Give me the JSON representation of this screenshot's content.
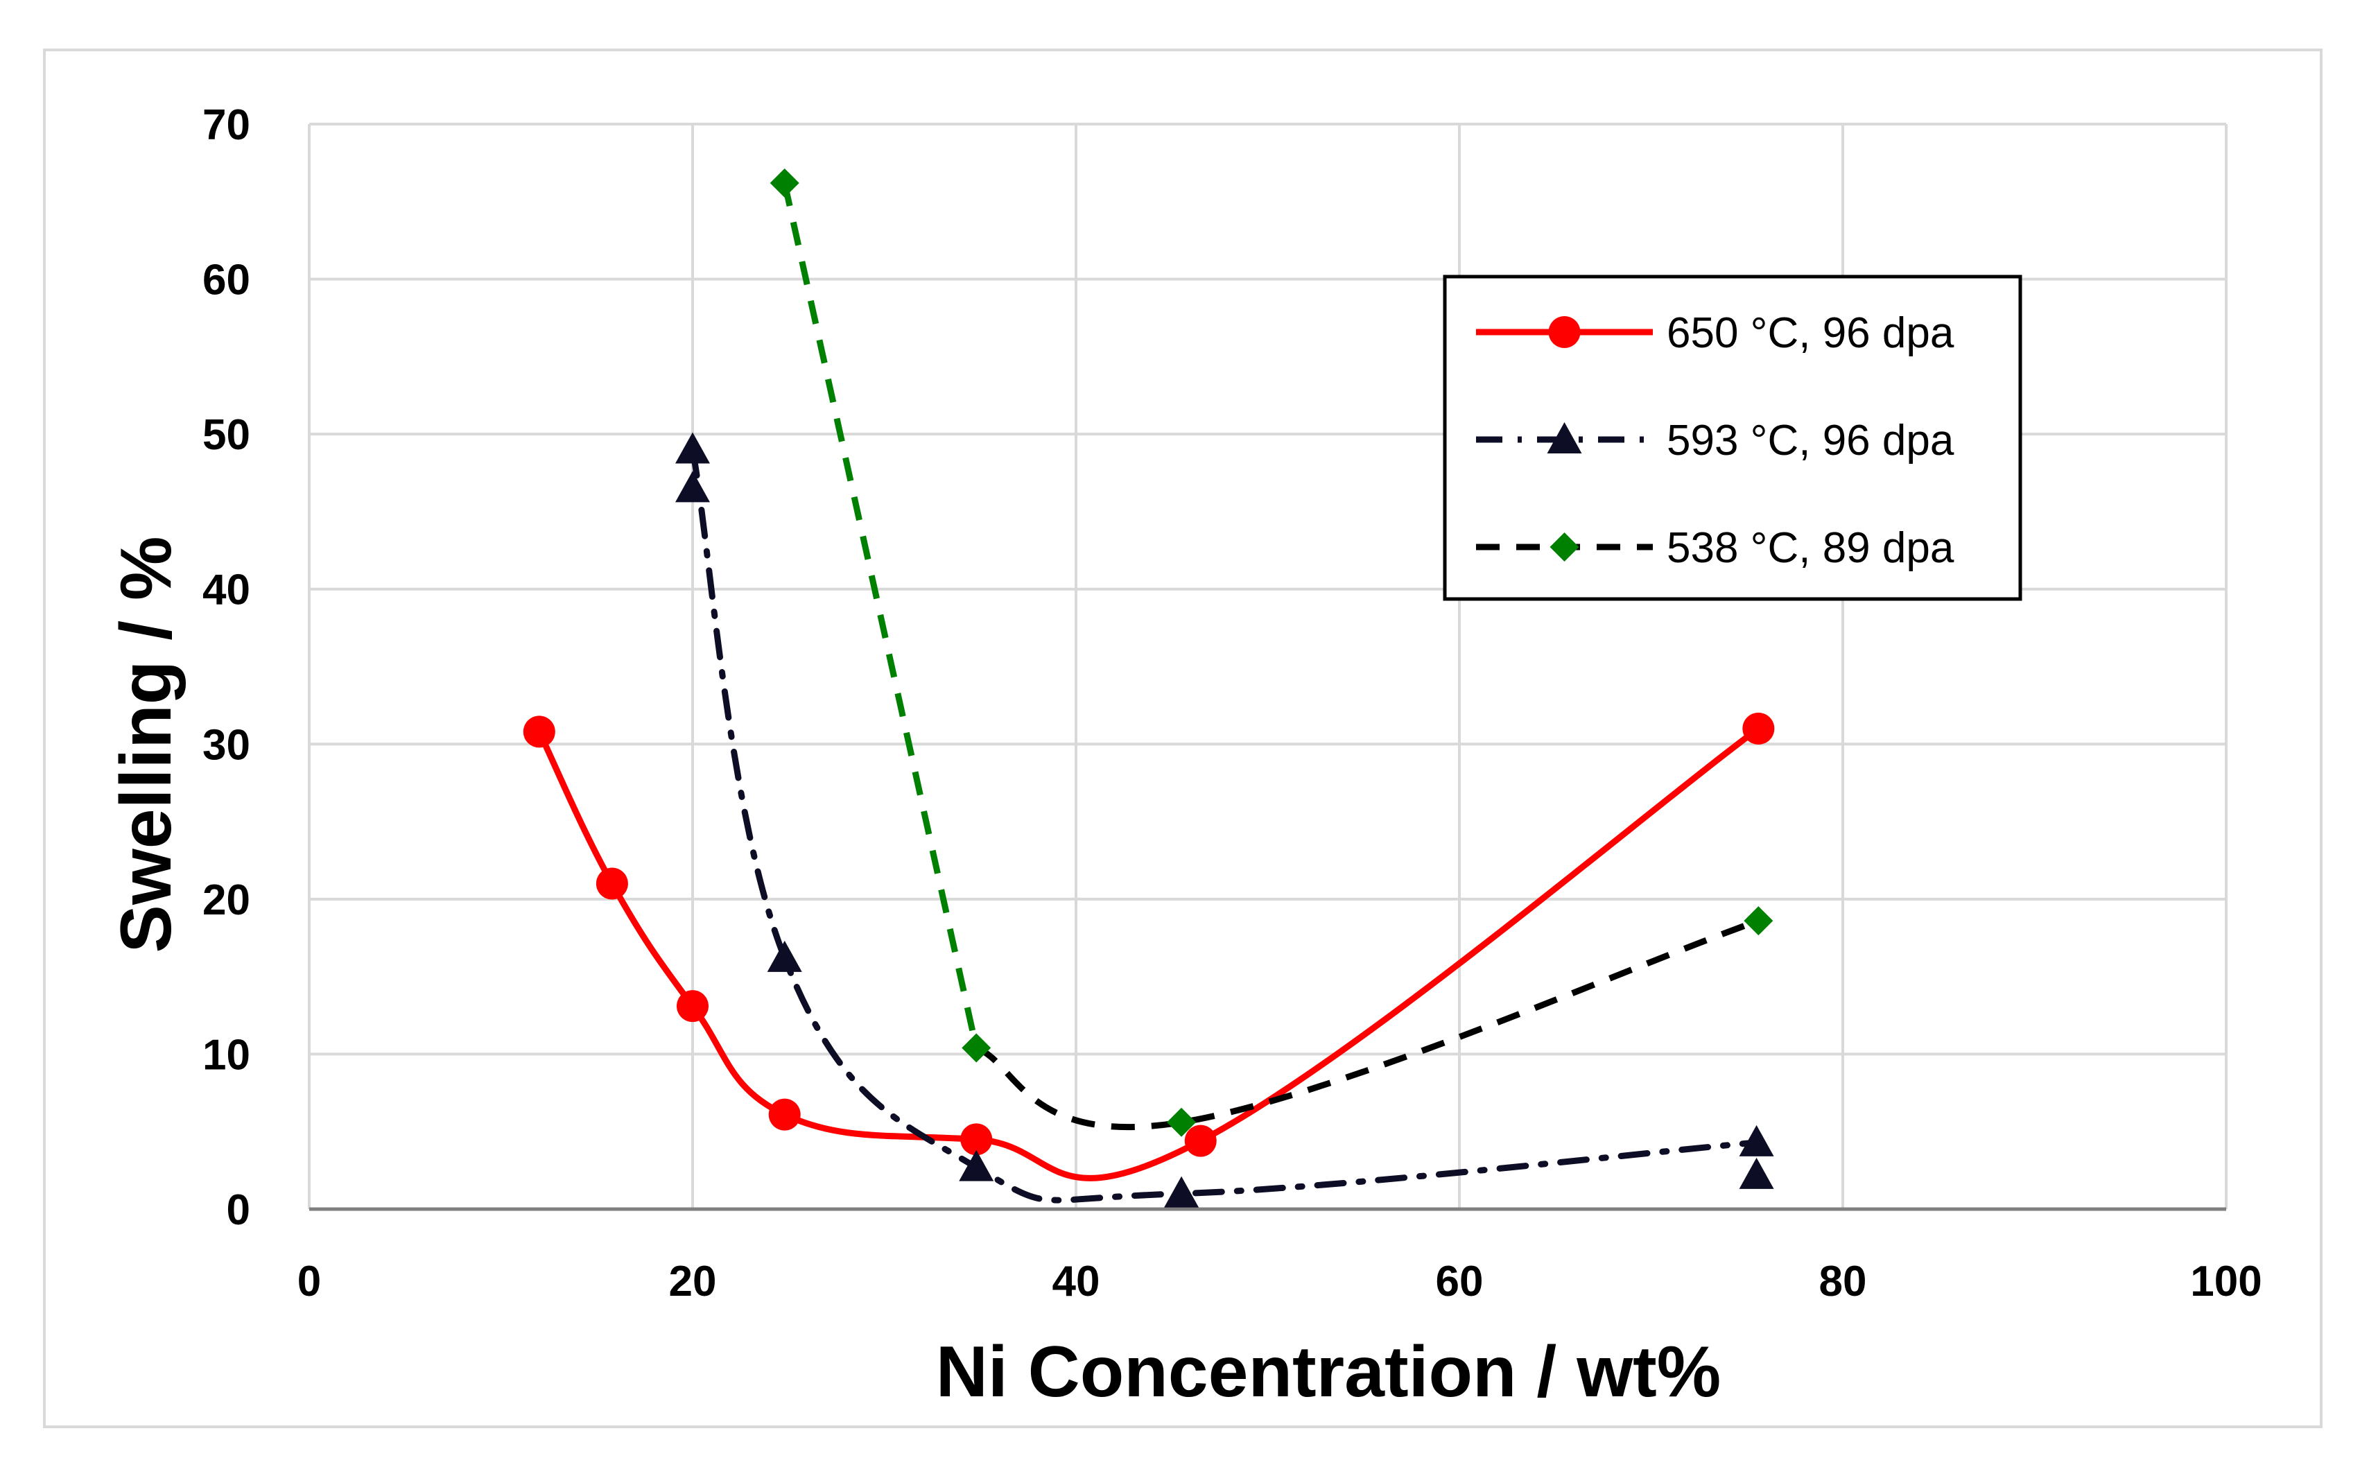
{
  "chart_data": {
    "type": "line",
    "title": "",
    "xlabel": "Ni Concentration / wt%",
    "ylabel": "Swelling / %",
    "xlim": [
      0,
      100
    ],
    "ylim": [
      0,
      70
    ],
    "xticks": [
      "0",
      "20",
      "40",
      "60",
      "80",
      "100"
    ],
    "yticks": [
      "0",
      "10",
      "20",
      "30",
      "40",
      "50",
      "60",
      "70"
    ],
    "grid": true,
    "legend_position": "top-right",
    "series": [
      {
        "name": "650 °C, 96 dpa",
        "color": "#ff0000",
        "line_style": "solid",
        "marker": "circle",
        "points": [
          {
            "x": 12,
            "y": 30.8
          },
          {
            "x": 15.8,
            "y": 21.0
          },
          {
            "x": 20,
            "y": 13.1
          },
          {
            "x": 24.8,
            "y": 6.1
          },
          {
            "x": 34.8,
            "y": 4.5
          },
          {
            "x": 46.5,
            "y": 4.4
          },
          {
            "x": 75.6,
            "y": 31.0
          }
        ]
      },
      {
        "name": "593 °C, 96 dpa",
        "color": "#0d0d26",
        "line_style": "dash-dot",
        "marker": "triangle",
        "points": [
          {
            "x": 20,
            "y": 49.0
          },
          {
            "x": 20,
            "y": 46.5
          },
          {
            "x": 24.8,
            "y": 16.2
          },
          {
            "x": 34.8,
            "y": 2.7
          },
          {
            "x": 45.5,
            "y": 1.0
          },
          {
            "x": 75.5,
            "y": 4.3
          },
          {
            "x": 75.5,
            "y": 2.2
          }
        ]
      },
      {
        "name": "538 °C, 89 dpa",
        "color": "#008000",
        "line_style": "dashed",
        "marker": "diamond",
        "points": [
          {
            "x": 24.8,
            "y": 66.2
          },
          {
            "x": 34.8,
            "y": 10.4
          },
          {
            "x": 45.5,
            "y": 5.6
          },
          {
            "x": 75.6,
            "y": 18.6
          }
        ]
      }
    ]
  }
}
